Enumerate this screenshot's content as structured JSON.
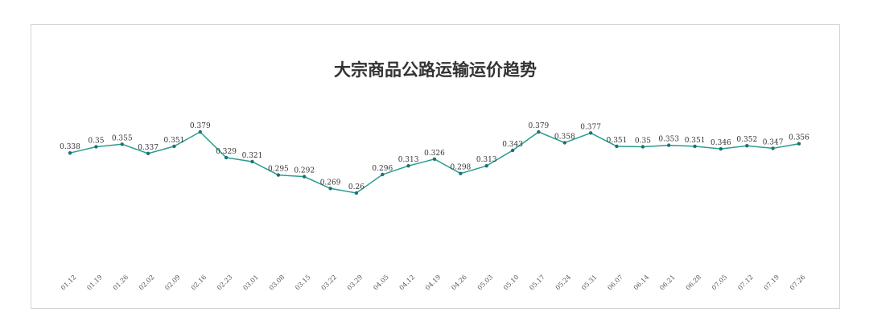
{
  "chart_data": {
    "type": "line",
    "title": "大宗商品公路运输运价趋势",
    "xlabel": "",
    "ylabel": "",
    "ylim": [
      0,
      0.5
    ],
    "grid": false,
    "legend": "none",
    "line_color": "#2a9d8f",
    "point_color": "#1f6f78",
    "categories": [
      "01.12",
      "01.19",
      "01.26",
      "02.02",
      "02.09",
      "02.16",
      "02.23",
      "03.01",
      "03.08",
      "03.15",
      "03.22",
      "03.29",
      "04.05",
      "04.12",
      "04.19",
      "04.26",
      "05.03",
      "05.10",
      "05.17",
      "05.24",
      "05.31",
      "06.07",
      "06.14",
      "06.21",
      "06.28",
      "07.05",
      "07.12",
      "07.19",
      "07.26"
    ],
    "series": [
      {
        "values": [
          0.338,
          0.35,
          0.355,
          0.337,
          0.351,
          0.379,
          0.329,
          0.321,
          0.295,
          0.292,
          0.269,
          0.26,
          0.296,
          0.313,
          0.326,
          0.298,
          0.313,
          0.343,
          0.379,
          0.358,
          0.377,
          0.351,
          0.35,
          0.353,
          0.351,
          0.346,
          0.352,
          0.347,
          0.356
        ],
        "labels": [
          "0.338",
          "0.35",
          "0.355",
          "0.337",
          "0.351",
          "0.379",
          "0.329",
          "0.321",
          "0.295",
          "0.292",
          "0.269",
          "0.26",
          "0.296",
          "0.313",
          "0.326",
          "0.298",
          "0.313",
          "0.343",
          "0.379",
          "0.358",
          "0.377",
          "0.351",
          "0.35",
          "0.353",
          "0.351",
          "0.346",
          "0.352",
          "0.347",
          "0.356"
        ]
      }
    ]
  }
}
